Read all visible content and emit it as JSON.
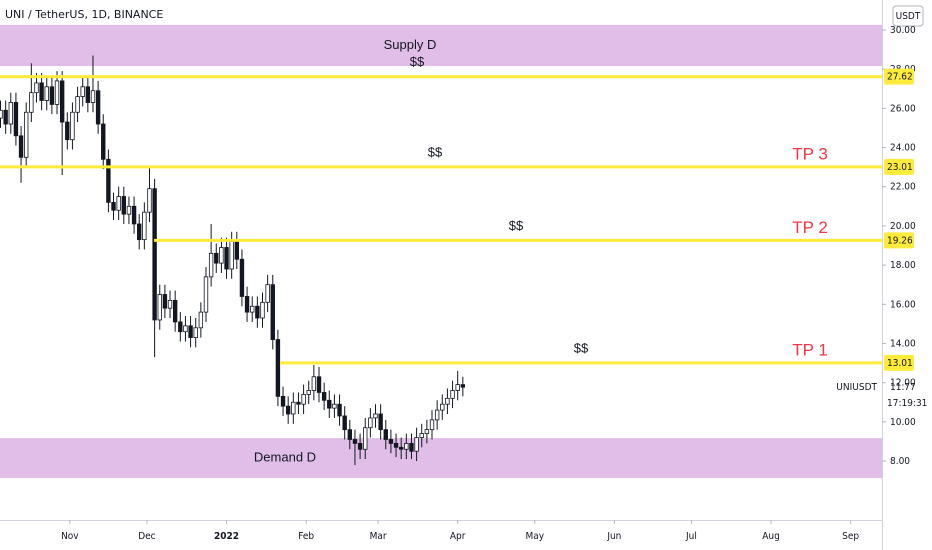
{
  "chart_data": {
    "type": "candlestick",
    "title": "UNI / TetherUS, 1D, BINANCE",
    "symbol": "UNIUSDT",
    "currency": "USDT",
    "countdown": "17:19:31",
    "open": [
      25.5,
      25.9,
      25.2,
      26.3,
      24.6,
      23.5,
      25.8,
      26.8,
      27.3,
      26.4,
      27.1,
      26.2,
      27.4,
      25.3,
      24.4,
      25.8,
      26.6,
      27.1,
      26.3,
      26.9,
      25.2,
      23.4,
      21.2,
      20.8,
      21.5,
      20.6,
      21.0,
      20.1,
      19.3,
      20.7,
      21.9,
      15.2,
      16.5,
      15.8,
      16.2,
      15.1,
      14.6,
      14.9,
      14.3,
      14.8,
      15.6,
      17.4,
      18.6,
      18.1,
      18.9,
      17.8,
      19.2,
      18.3,
      16.4,
      15.6,
      15.9,
      15.3,
      16.1,
      17.0,
      14.2,
      11.3,
      10.8,
      10.4,
      11.0,
      10.9,
      11.4,
      11.6,
      12.3,
      11.5,
      11.1,
      10.7,
      10.9,
      10.3,
      9.6,
      9.1,
      8.9,
      8.6,
      9.7,
      10.2,
      10.4,
      9.6,
      9.1,
      8.9,
      8.7,
      8.6,
      8.9,
      8.5,
      9.2,
      9.4,
      9.6,
      10.1,
      10.6,
      10.9,
      11.2,
      11.6,
      11.9
    ],
    "high": [
      26.4,
      26.4,
      26.8,
      26.8,
      25.1,
      26.3,
      28.3,
      27.8,
      27.8,
      27.6,
      27.6,
      27.9,
      27.9,
      25.8,
      26.3,
      27.1,
      27.6,
      27.6,
      28.7,
      27.4,
      25.7,
      23.9,
      21.7,
      22.0,
      22.0,
      21.5,
      21.5,
      20.6,
      21.2,
      23.0,
      22.4,
      17.0,
      17.0,
      16.7,
      16.7,
      15.6,
      15.4,
      15.4,
      15.3,
      16.1,
      17.9,
      20.1,
      19.1,
      19.4,
      19.4,
      19.7,
      19.7,
      18.8,
      16.9,
      16.4,
      16.4,
      16.6,
      17.5,
      17.5,
      14.7,
      11.8,
      11.3,
      11.5,
      11.5,
      11.9,
      12.1,
      12.9,
      12.8,
      12.0,
      11.6,
      11.4,
      11.4,
      10.8,
      10.1,
      9.6,
      9.4,
      10.2,
      10.7,
      10.9,
      10.9,
      10.1,
      9.6,
      9.4,
      9.2,
      9.4,
      9.4,
      9.7,
      9.9,
      10.1,
      10.6,
      11.1,
      11.4,
      11.7,
      12.1,
      12.6,
      12.3
    ],
    "low": [
      25.0,
      24.7,
      24.7,
      24.1,
      22.2,
      23.0,
      25.3,
      26.3,
      25.9,
      25.9,
      25.7,
      25.7,
      22.6,
      23.9,
      23.9,
      25.3,
      26.1,
      25.8,
      25.8,
      24.7,
      22.9,
      20.7,
      20.3,
      20.3,
      20.1,
      20.1,
      19.6,
      18.8,
      18.8,
      20.2,
      13.3,
      14.7,
      15.3,
      15.3,
      14.6,
      14.1,
      14.1,
      13.8,
      13.8,
      14.3,
      15.1,
      16.9,
      17.6,
      17.6,
      17.3,
      17.3,
      17.8,
      15.9,
      15.1,
      15.1,
      14.8,
      14.8,
      15.6,
      13.7,
      10.8,
      10.3,
      9.9,
      9.9,
      10.4,
      10.4,
      10.9,
      11.1,
      11.0,
      10.6,
      10.2,
      10.2,
      9.8,
      9.1,
      8.6,
      7.8,
      8.1,
      8.1,
      9.2,
      9.7,
      9.1,
      8.6,
      8.4,
      8.2,
      8.1,
      8.1,
      8.1,
      8.0,
      8.7,
      8.9,
      9.1,
      9.6,
      10.1,
      10.4,
      10.7,
      11.1,
      11.3
    ],
    "close": [
      25.9,
      25.2,
      26.3,
      24.6,
      23.5,
      25.8,
      26.8,
      27.3,
      26.4,
      27.1,
      26.2,
      27.4,
      25.3,
      24.4,
      25.8,
      26.6,
      27.1,
      26.3,
      26.9,
      25.2,
      23.4,
      21.2,
      20.8,
      21.5,
      20.6,
      21.0,
      20.1,
      19.3,
      20.7,
      21.9,
      15.2,
      16.5,
      15.8,
      16.2,
      15.1,
      14.6,
      14.9,
      14.3,
      14.8,
      15.6,
      17.4,
      18.6,
      18.1,
      18.9,
      17.8,
      19.2,
      18.3,
      16.4,
      15.6,
      15.9,
      15.3,
      16.1,
      17.0,
      14.2,
      11.3,
      10.8,
      10.4,
      11.0,
      10.9,
      11.4,
      11.6,
      12.3,
      11.5,
      11.1,
      10.7,
      10.9,
      10.3,
      9.6,
      9.1,
      8.9,
      8.6,
      9.7,
      10.2,
      10.4,
      9.6,
      9.1,
      8.9,
      8.7,
      8.6,
      8.9,
      8.5,
      9.2,
      9.4,
      9.6,
      10.1,
      10.6,
      10.9,
      11.2,
      11.6,
      11.9,
      11.77
    ],
    "up_color": "#ffffff",
    "down_color": "#131722",
    "xlim": [
      -0.1,
      171.6
    ],
    "xticks": [
      {
        "value": 13.5,
        "label": "Nov"
      },
      {
        "value": 28.5,
        "label": "Dec"
      },
      {
        "value": 44,
        "label": "2022"
      },
      {
        "value": 59.5,
        "label": "Feb"
      },
      {
        "value": 73.5,
        "label": "Mar"
      },
      {
        "value": 89,
        "label": "Apr"
      },
      {
        "value": 104,
        "label": "May"
      },
      {
        "value": 119.5,
        "label": "Jun"
      },
      {
        "value": 134.5,
        "label": "Jul"
      },
      {
        "value": 150,
        "label": "Aug"
      },
      {
        "value": 165.5,
        "label": "Sep"
      }
    ],
    "ylim": [
      4.99,
      31.53
    ],
    "yticks": [
      {
        "value": 8,
        "label": "8.00"
      },
      {
        "value": 10,
        "label": "10.00"
      },
      {
        "value": 12,
        "label": "12.00"
      },
      {
        "value": 14,
        "label": "14.00"
      },
      {
        "value": 16,
        "label": "16.00"
      },
      {
        "value": 18,
        "label": "18.00"
      },
      {
        "value": 20,
        "label": "20.00"
      },
      {
        "value": 22,
        "label": "22.00"
      },
      {
        "value": 24,
        "label": "24.00"
      },
      {
        "value": 26,
        "label": "26.00"
      },
      {
        "value": 28,
        "label": "28.00"
      },
      {
        "value": 30,
        "label": "30.00"
      }
    ],
    "grid": false,
    "zones": [
      {
        "label": "Supply D",
        "low": 28.16,
        "high": 30.26,
        "color": "#e1bee7"
      },
      {
        "label": "Demand D",
        "low": 7.13,
        "high": 9.17,
        "color": "#e1bee7"
      }
    ],
    "levels": [
      {
        "value": 27.62,
        "start": -0.1,
        "note": "$$",
        "color": "#ffeb3b"
      },
      {
        "value": 23.01,
        "start": -0.1,
        "note": "$$",
        "target": "TP 3",
        "color": "#ffeb3b"
      },
      {
        "value": 19.26,
        "start": 29.9,
        "note": "$$",
        "target": "TP 2",
        "color": "#ffeb3b"
      },
      {
        "value": 13.01,
        "start": 54.4,
        "note": "$$",
        "target": "TP 1",
        "color": "#ffeb3b"
      }
    ]
  }
}
